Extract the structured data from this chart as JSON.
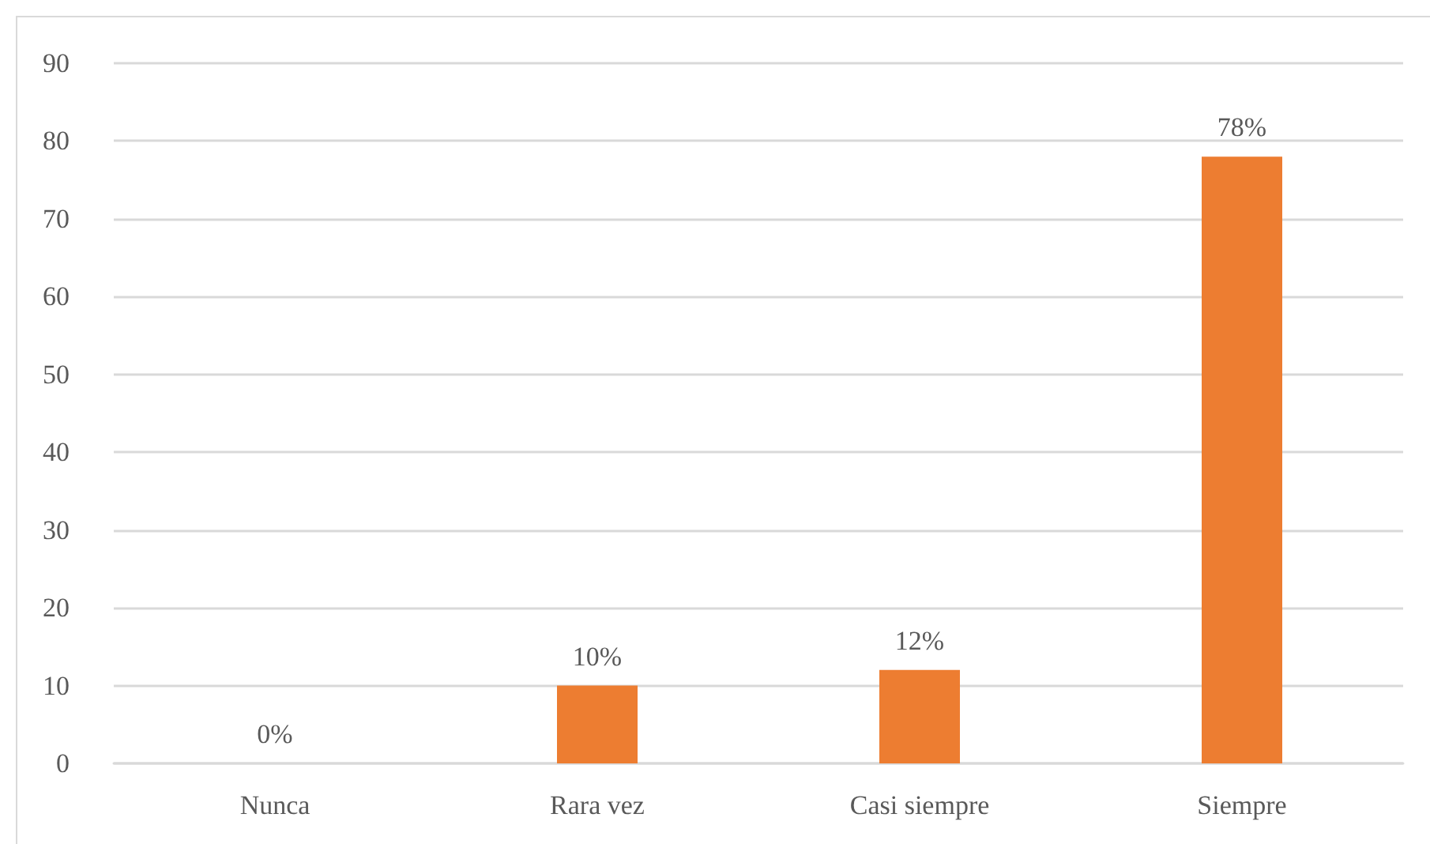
{
  "chart_data": {
    "type": "bar",
    "categories": [
      "Nunca",
      "Rara vez",
      "Casi siempre",
      "Siempre"
    ],
    "values": [
      0,
      10,
      12,
      78
    ],
    "value_labels": [
      "0%",
      "10%",
      "12%",
      "78%"
    ],
    "color": "#ed7d31",
    "ylim": [
      0,
      90
    ],
    "yticks": [
      0,
      10,
      20,
      30,
      40,
      50,
      60,
      70,
      80,
      90
    ],
    "grid": "y"
  }
}
